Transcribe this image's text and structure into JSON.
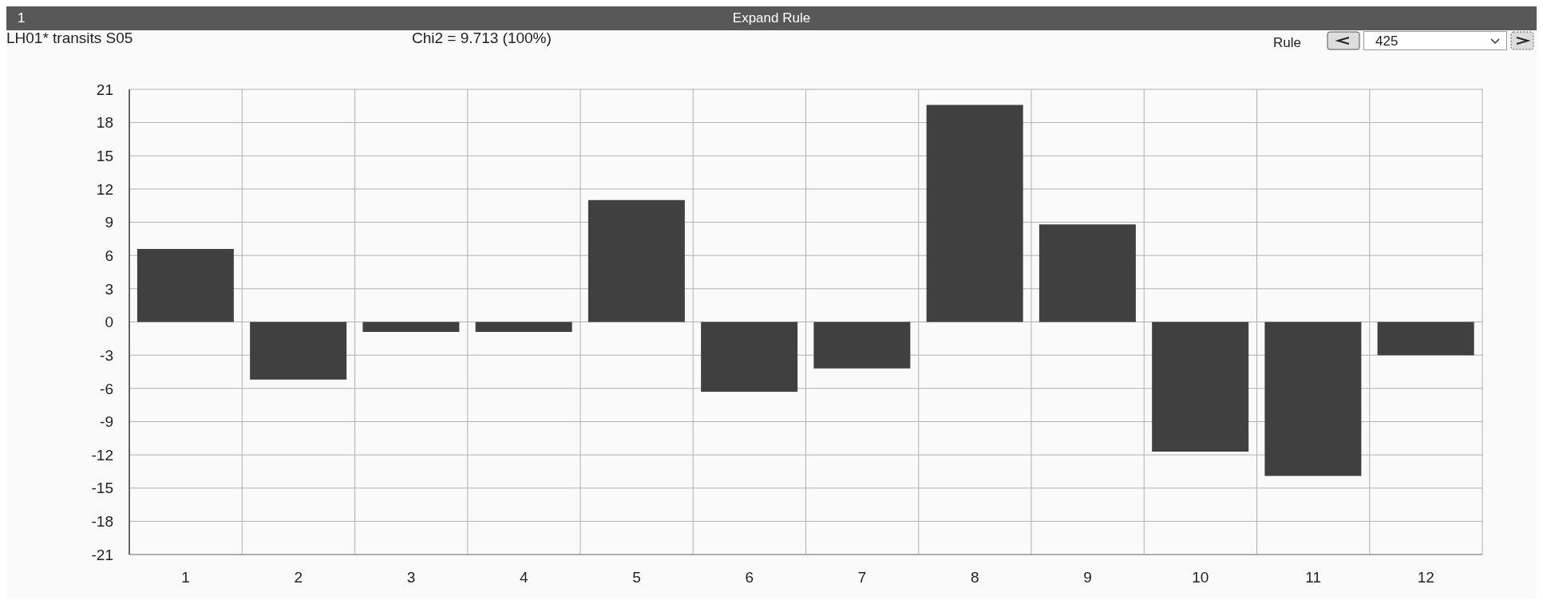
{
  "chart_data": {
    "type": "bar",
    "title": "Expand Rule",
    "subtitle": "LH01* transits S05",
    "annotations": [
      "1",
      "Chi2 = 9.713 (100%)",
      "Rule",
      "425"
    ],
    "categories": [
      "1",
      "2",
      "3",
      "4",
      "5",
      "6",
      "7",
      "8",
      "9",
      "10",
      "11",
      "12"
    ],
    "values": [
      6.6,
      -5.2,
      -0.9,
      -0.9,
      11.0,
      -6.3,
      -4.2,
      19.6,
      8.8,
      -11.7,
      -13.9,
      -3.0
    ],
    "color": "#404040",
    "ylim": [
      -21,
      21
    ],
    "yticks": [
      -21,
      -18,
      -15,
      -12,
      -9,
      -6,
      -3,
      0,
      3,
      6,
      9,
      12,
      15,
      18,
      21
    ],
    "grid": true
  }
}
